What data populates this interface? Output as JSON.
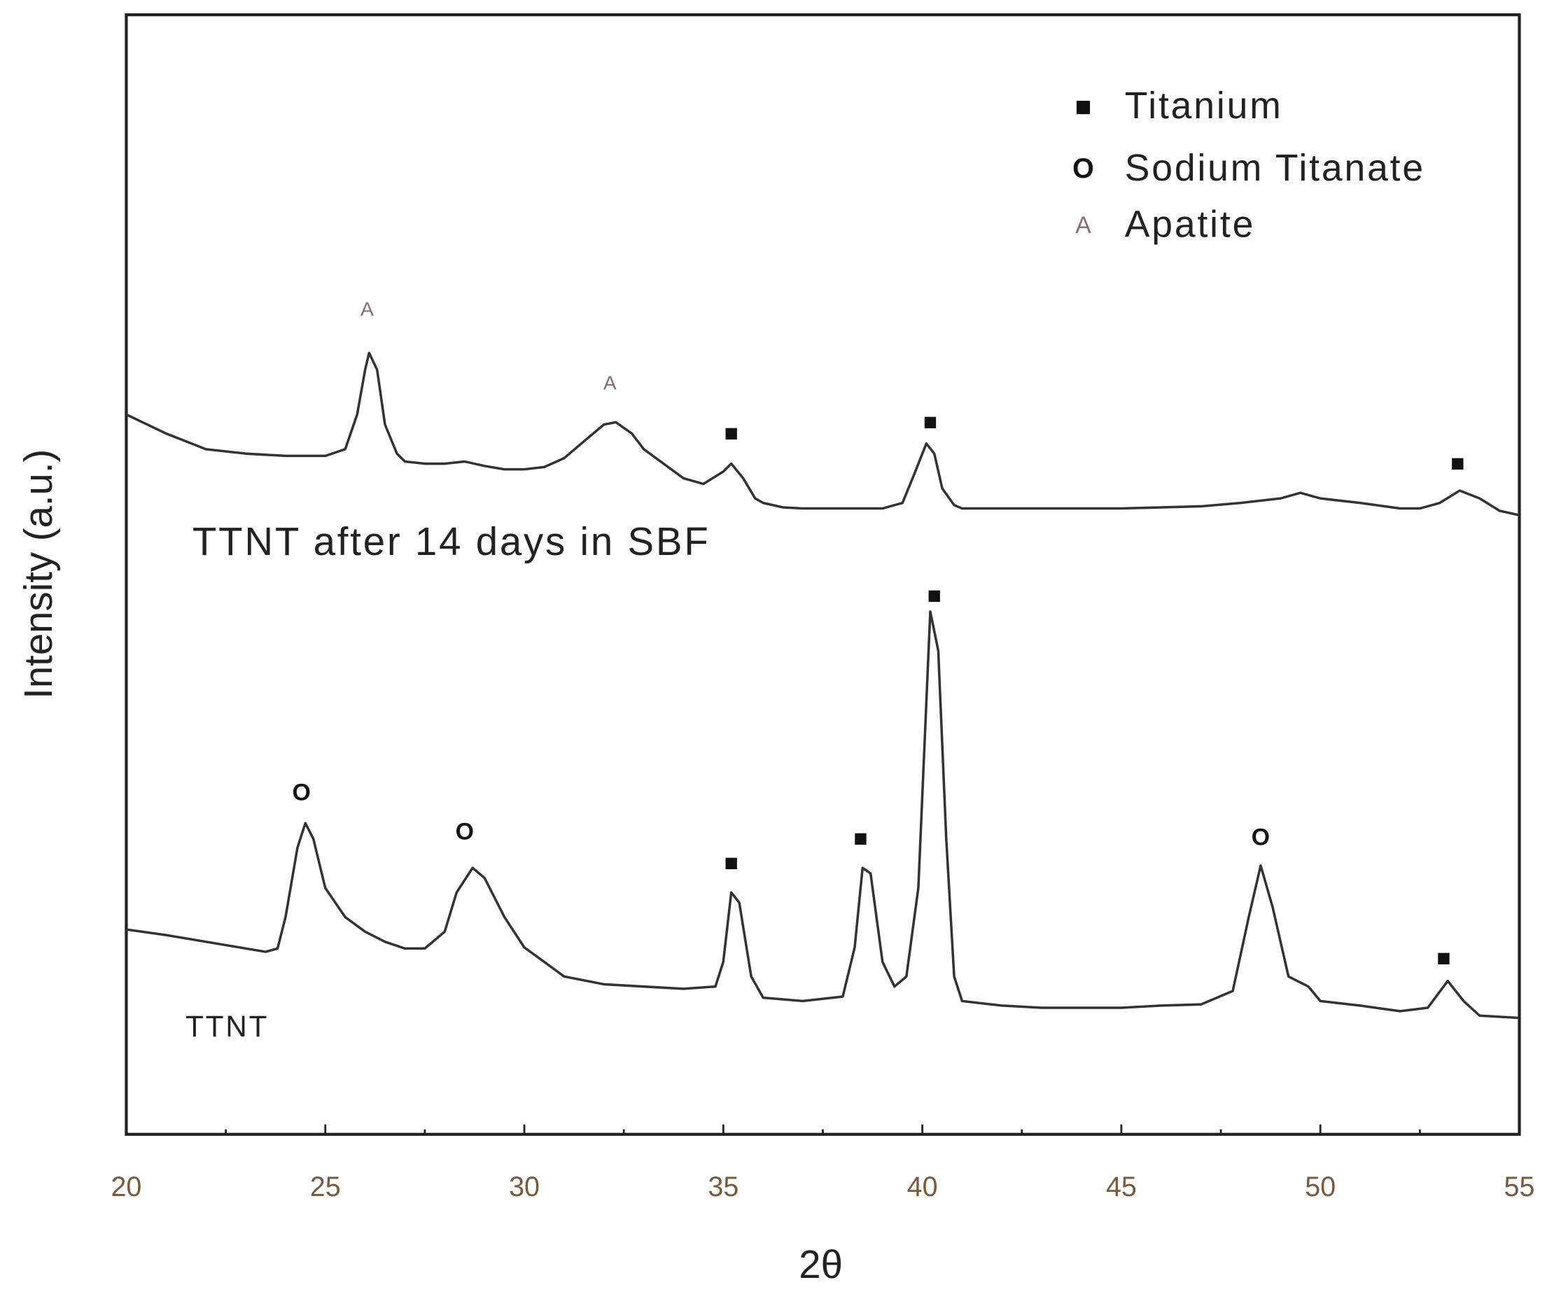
{
  "chart_data": {
    "type": "line",
    "x_label": "2θ",
    "y_label": "Intensity (a.u.)",
    "xlim": [
      20,
      55
    ],
    "ylim": [
      0,
      100
    ],
    "xticks": [
      20,
      25,
      30,
      35,
      40,
      45,
      50,
      55
    ],
    "xminorticks": [
      22.5,
      27.5,
      32.5,
      37.5,
      42.5,
      47.5,
      52.5
    ],
    "series": [
      {
        "name": "TTNT after 14 days in SBF",
        "color": "#333333",
        "x": [
          20,
          21,
          22,
          23,
          24,
          24.5,
          25,
          25.5,
          25.8,
          26.0,
          26.1,
          26.3,
          26.5,
          26.8,
          27,
          27.5,
          28,
          28.5,
          29,
          29.5,
          30,
          30.5,
          31,
          31.5,
          32,
          32.3,
          32.7,
          33,
          33.5,
          34,
          34.5,
          35,
          35.2,
          35.5,
          35.8,
          36,
          36.5,
          37,
          38,
          39,
          39.5,
          39.8,
          40.1,
          40.3,
          40.5,
          40.8,
          41,
          42,
          43,
          44,
          45,
          46,
          47,
          48,
          49,
          49.5,
          50,
          51,
          52,
          52.5,
          53,
          53.5,
          54,
          54.5,
          55
        ],
        "values": [
          64.3,
          62.6,
          61.2,
          60.8,
          60.6,
          60.6,
          60.6,
          61.2,
          64.3,
          68.3,
          69.8,
          68.3,
          63.4,
          60.8,
          60.1,
          59.9,
          59.9,
          60.1,
          59.7,
          59.4,
          59.4,
          59.6,
          60.4,
          61.9,
          63.4,
          63.6,
          62.6,
          61.2,
          59.9,
          58.6,
          58.1,
          59.2,
          59.9,
          58.6,
          56.8,
          56.4,
          56.0,
          55.9,
          55.9,
          55.9,
          56.4,
          59.0,
          61.7,
          60.8,
          57.7,
          56.2,
          55.9,
          55.9,
          55.9,
          55.9,
          55.9,
          56.0,
          56.1,
          56.4,
          56.8,
          57.3,
          56.8,
          56.4,
          55.9,
          55.9,
          56.4,
          57.5,
          56.8,
          55.7,
          55.3
        ]
      },
      {
        "name": "TTNT",
        "color": "#333333",
        "x": [
          20,
          21,
          22,
          23,
          23.5,
          23.8,
          24,
          24.3,
          24.5,
          24.7,
          25,
          25.5,
          26,
          26.5,
          27,
          27.5,
          28,
          28.3,
          28.7,
          29,
          29.5,
          30,
          30.5,
          31,
          32,
          33,
          34,
          34.8,
          35,
          35.2,
          35.4,
          35.7,
          36,
          37,
          38,
          38.3,
          38.5,
          38.7,
          39,
          39.3,
          39.6,
          39.9,
          40.2,
          40.4,
          40.6,
          40.8,
          41,
          42,
          43,
          44,
          45,
          46,
          47,
          47.8,
          48.2,
          48.5,
          48.8,
          49.2,
          49.7,
          50,
          51,
          52,
          52.7,
          53.2,
          53.6,
          54,
          55
        ],
        "values": [
          18.3,
          17.8,
          17.2,
          16.6,
          16.3,
          16.6,
          19.4,
          25.6,
          27.8,
          26.4,
          22.0,
          19.4,
          18.1,
          17.2,
          16.6,
          16.6,
          18.1,
          21.6,
          23.8,
          22.9,
          19.4,
          16.7,
          15.4,
          14.1,
          13.4,
          13.2,
          13.0,
          13.2,
          15.4,
          21.6,
          20.7,
          14.1,
          12.2,
          11.9,
          12.3,
          16.7,
          23.8,
          23.3,
          15.4,
          13.2,
          14.1,
          22.0,
          46.7,
          43.2,
          26.4,
          14.1,
          11.9,
          11.5,
          11.3,
          11.3,
          11.3,
          11.5,
          11.6,
          12.8,
          19.4,
          24.0,
          20.3,
          14.1,
          13.2,
          11.9,
          11.5,
          11.0,
          11.3,
          13.7,
          11.9,
          10.6,
          10.4
        ]
      }
    ],
    "legend": [
      {
        "symbol": "■",
        "label": "Titanium",
        "peaks": [
          {
            "x": 35.2,
            "y": 62.5
          },
          {
            "x": 40.2,
            "y": 63.5
          },
          {
            "x": 53.45,
            "y": 59.8
          },
          {
            "x": 40.3,
            "y": 48.0
          },
          {
            "x": 35.2,
            "y": 24.1
          },
          {
            "x": 38.45,
            "y": 26.3
          },
          {
            "x": 53.1,
            "y": 15.6
          }
        ]
      },
      {
        "symbol": "O",
        "label": "Sodium Titanate",
        "peaks": [
          {
            "x": 24.4,
            "y": 30.4
          },
          {
            "x": 28.5,
            "y": 26.9
          },
          {
            "x": 48.5,
            "y": 26.4
          }
        ]
      },
      {
        "symbol": "A",
        "label": "Apatite",
        "peaks": [
          {
            "x": 26.05,
            "y": 73.6
          },
          {
            "x": 32.15,
            "y": 67.0
          }
        ]
      }
    ]
  }
}
